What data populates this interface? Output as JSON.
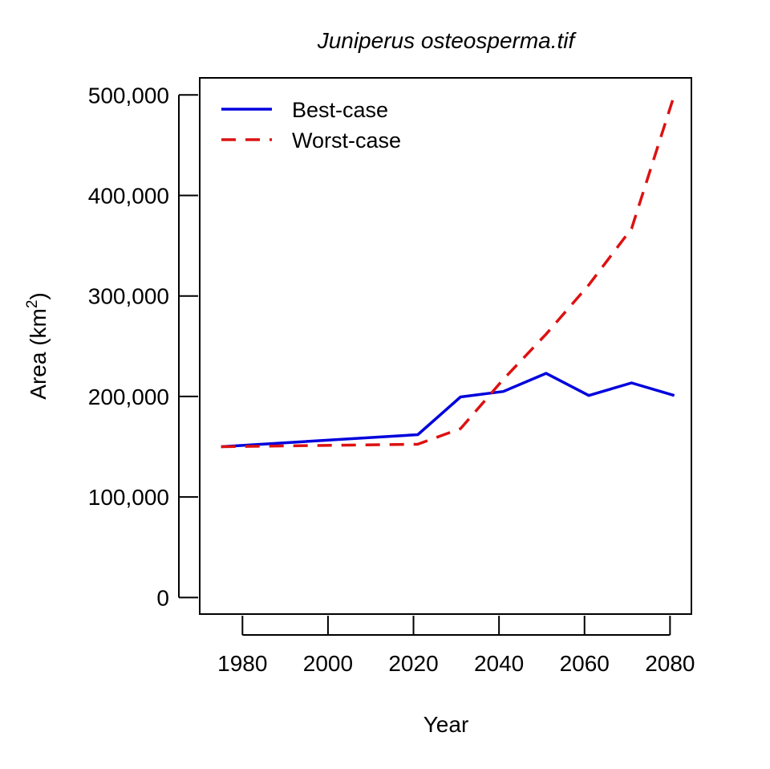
{
  "chart_data": {
    "type": "line",
    "title": "Juniperus osteosperma.tif",
    "xlabel": "Year",
    "ylabel_main": "Area (km",
    "ylabel_sup": "2",
    "ylabel_close": ")",
    "xlim": [
      1970,
      2085
    ],
    "ylim": [
      -16500,
      517000
    ],
    "x_ticks": [
      1980,
      2000,
      2020,
      2040,
      2060,
      2080
    ],
    "x_tick_labels": [
      "1980",
      "2000",
      "2020",
      "2040",
      "2060",
      "2080"
    ],
    "y_ticks": [
      0,
      100000,
      200000,
      300000,
      400000,
      500000
    ],
    "y_tick_labels": [
      "0",
      "100,000",
      "200,000",
      "300,000",
      "400,000",
      "500,000"
    ],
    "grid": false,
    "legend_position": "top-left",
    "series": [
      {
        "name": "Best-case",
        "color": "#0000dd",
        "dash": "solid",
        "x": [
          1975,
          2021,
          2031,
          2041,
          2051,
          2061,
          2071,
          2081
        ],
        "y": [
          150000,
          162000,
          199500,
          205000,
          223000,
          201000,
          213500,
          201000
        ]
      },
      {
        "name": "Worst-case",
        "color": "#dd1111",
        "dash": "dashed",
        "x": [
          1975,
          2021,
          2031,
          2041,
          2051,
          2061,
          2071,
          2081
        ],
        "y": [
          150000,
          152500,
          168000,
          217000,
          262000,
          311000,
          367000,
          500000
        ]
      }
    ]
  }
}
